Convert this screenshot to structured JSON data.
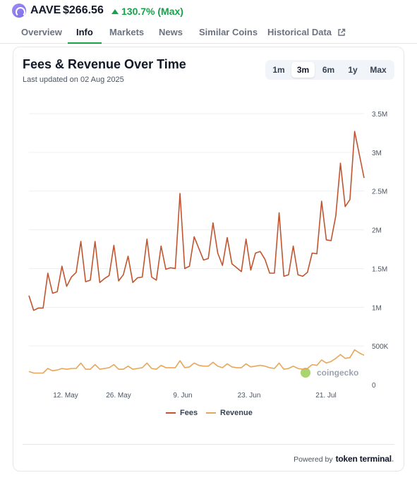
{
  "coin": {
    "symbol": "AAVE",
    "price": "$266.56",
    "change": "130.7% (Max)"
  },
  "colors": {
    "fees": "#c0552f",
    "revenue": "#e8a65a",
    "accent_green": "#16a34a"
  },
  "nav": [
    {
      "label": "Overview",
      "active": false
    },
    {
      "label": "Info",
      "active": true
    },
    {
      "label": "Markets",
      "active": false
    },
    {
      "label": "News",
      "active": false
    },
    {
      "label": "Similar Coins",
      "active": false
    },
    {
      "label": "Historical Data",
      "active": false,
      "icon": "external-link-icon"
    }
  ],
  "card": {
    "title": "Fees & Revenue Over Time",
    "subtitle": "Last updated on 02 Aug 2025",
    "ranges": [
      "1m",
      "3m",
      "6m",
      "1y",
      "Max"
    ],
    "active_range": "3m"
  },
  "chart_data": {
    "type": "line",
    "x_ticks": [
      "12. May",
      "26. May",
      "9. Jun",
      "23. Jun",
      "21. Jul"
    ],
    "y_ticks": [
      "0",
      "500K",
      "1M",
      "1.5M",
      "2M",
      "2.5M",
      "3M",
      "3.5M"
    ],
    "ylim": [
      0,
      3500000
    ],
    "y_axis_position": "right",
    "grid": true,
    "legend_position": "bottom",
    "watermark": "coingecko",
    "series": [
      {
        "name": "Fees",
        "values": [
          1150000,
          960000,
          990000,
          990000,
          1440000,
          1180000,
          1200000,
          1530000,
          1270000,
          1390000,
          1450000,
          1850000,
          1330000,
          1350000,
          1850000,
          1320000,
          1370000,
          1410000,
          1800000,
          1340000,
          1420000,
          1660000,
          1320000,
          1380000,
          1390000,
          1880000,
          1390000,
          1350000,
          1790000,
          1490000,
          1510000,
          1500000,
          2470000,
          1500000,
          1530000,
          1910000,
          1760000,
          1610000,
          1630000,
          2090000,
          1700000,
          1540000,
          1900000,
          1560000,
          1510000,
          1460000,
          1880000,
          1480000,
          1700000,
          1720000,
          1620000,
          1440000,
          1440000,
          2220000,
          1400000,
          1420000,
          1790000,
          1420000,
          1400000,
          1450000,
          1700000,
          1690000,
          2370000,
          1870000,
          1860000,
          2180000,
          2860000,
          2300000,
          2390000,
          3270000,
          2970000,
          2670000
        ]
      },
      {
        "name": "Revenue",
        "values": [
          170000,
          150000,
          150000,
          150000,
          210000,
          180000,
          190000,
          210000,
          200000,
          210000,
          210000,
          280000,
          200000,
          200000,
          260000,
          200000,
          210000,
          220000,
          260000,
          200000,
          200000,
          240000,
          200000,
          210000,
          220000,
          280000,
          210000,
          200000,
          250000,
          220000,
          220000,
          220000,
          310000,
          220000,
          230000,
          280000,
          250000,
          240000,
          240000,
          290000,
          240000,
          220000,
          270000,
          230000,
          220000,
          220000,
          270000,
          230000,
          240000,
          250000,
          240000,
          220000,
          210000,
          280000,
          200000,
          210000,
          240000,
          210000,
          200000,
          210000,
          260000,
          250000,
          320000,
          280000,
          300000,
          340000,
          390000,
          340000,
          350000,
          450000,
          410000,
          380000
        ]
      }
    ]
  },
  "legend": {
    "fees": "Fees",
    "revenue": "Revenue"
  },
  "footer": {
    "powered_by": "Powered by",
    "brand": "token terminal",
    "brand_suffix": "."
  }
}
